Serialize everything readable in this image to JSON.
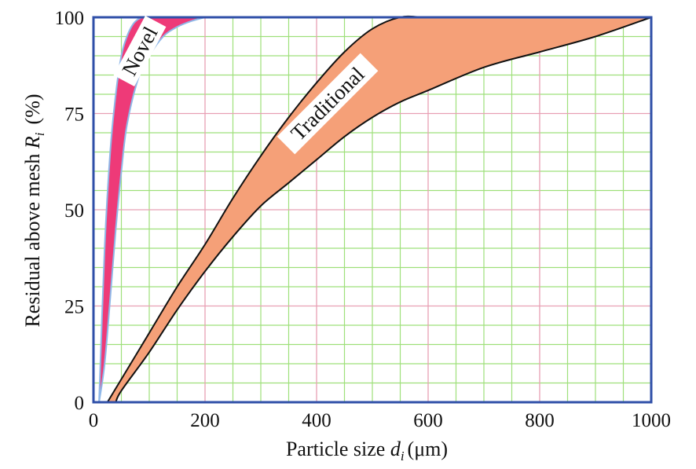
{
  "chart_data": {
    "type": "area",
    "xlabel": "Particle size",
    "xlabel_symbol": "d",
    "xlabel_subscript": "i",
    "xlabel_unit": "(μm)",
    "ylabel": "Residual above mesh",
    "ylabel_symbol": "R",
    "ylabel_subscript": "i",
    "ylabel_unit": "(%)",
    "xlim": [
      0,
      1000
    ],
    "ylim": [
      0,
      100
    ],
    "x_ticks": [
      0,
      200,
      400,
      600,
      800,
      1000
    ],
    "y_ticks": [
      0,
      25,
      50,
      75,
      100
    ],
    "x_minor_step": 50,
    "y_minor_step": 5,
    "grid": true,
    "colors": {
      "major_grid": "#e8a0b4",
      "minor_grid": "#9ee07a",
      "frame": "#2f4fa8",
      "novel_fill": "#ee3a78",
      "novel_edge": "#8fb8e8",
      "traditional_fill": "#f5a078",
      "traditional_edge": "#111111"
    },
    "series": [
      {
        "name": "Novel",
        "upper": {
          "x": [
            10,
            20,
            30,
            40,
            50,
            60,
            70,
            80,
            90,
            100
          ],
          "y": [
            0,
            40,
            65,
            80,
            90,
            95,
            98,
            99.5,
            100,
            100
          ]
        },
        "lower": {
          "x": [
            10,
            20,
            30,
            40,
            50,
            60,
            80,
            100,
            125,
            150,
            175,
            200
          ],
          "y": [
            0,
            10,
            27,
            45,
            60,
            72,
            84,
            90,
            95,
            97.5,
            99,
            100
          ]
        }
      },
      {
        "name": "Traditional",
        "upper": {
          "x": [
            25,
            50,
            100,
            150,
            200,
            250,
            300,
            350,
            400,
            450,
            500,
            550,
            600,
            700,
            800,
            900,
            1000
          ],
          "y": [
            0,
            6,
            18,
            30,
            41,
            53,
            64,
            74,
            83,
            91,
            97,
            100,
            100,
            100,
            100,
            100,
            100
          ]
        },
        "lower": {
          "x": [
            40,
            50,
            100,
            150,
            200,
            250,
            300,
            350,
            400,
            450,
            500,
            550,
            600,
            700,
            800,
            900,
            1000
          ],
          "y": [
            0,
            3,
            13,
            24,
            34,
            43,
            51,
            57,
            63,
            69,
            74,
            78,
            81,
            87,
            91,
            95,
            100
          ]
        }
      }
    ]
  }
}
